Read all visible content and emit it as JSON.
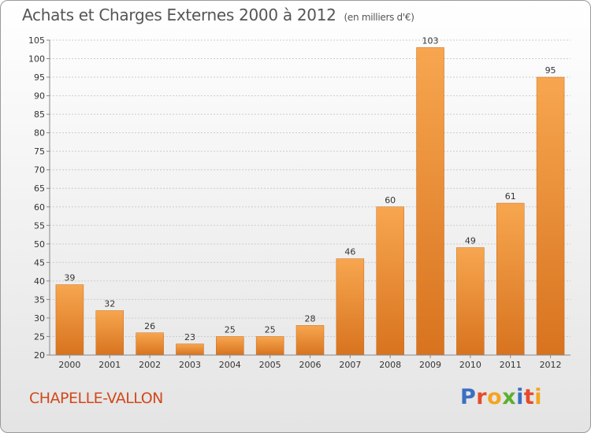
{
  "title": {
    "main": "Achats et Charges Externes 2000 à 2012",
    "unit": "(en milliers d'€)"
  },
  "town": "CHAPELLE-VALLON",
  "logo": {
    "letters": [
      "P",
      "r",
      "o",
      "x",
      "i",
      "t",
      "i"
    ],
    "colors": [
      "#3a6fc4",
      "#e44b2c",
      "#f3a521",
      "#5bb02f",
      "#3a6fc4",
      "#e44b2c",
      "#f3a521"
    ]
  },
  "colors": {
    "bar_light": "#f7a64f",
    "bar_dark": "#d8731f",
    "grid": "#cccccc",
    "axis": "#888888"
  },
  "chart_data": {
    "type": "bar",
    "categories": [
      "2000",
      "2001",
      "2002",
      "2003",
      "2004",
      "2005",
      "2006",
      "2007",
      "2008",
      "2009",
      "2010",
      "2011",
      "2012"
    ],
    "values": [
      39,
      32,
      26,
      23,
      25,
      25,
      28,
      46,
      60,
      103,
      49,
      61,
      95
    ],
    "ylim": [
      20,
      105
    ],
    "yticks": [
      20,
      25,
      30,
      35,
      40,
      45,
      50,
      55,
      60,
      65,
      70,
      75,
      80,
      85,
      90,
      95,
      100,
      105
    ],
    "grid": true
  }
}
